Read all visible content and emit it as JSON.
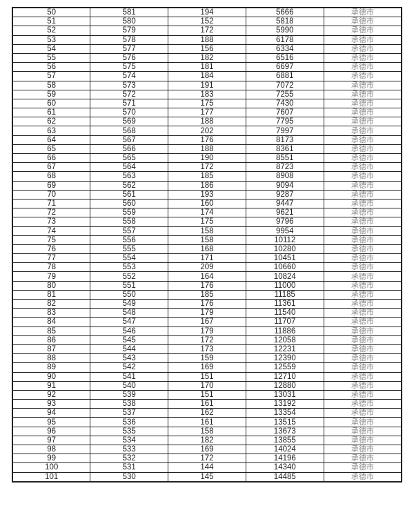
{
  "table": {
    "rows": [
      [
        "50",
        "581",
        "194",
        "5666",
        "承德市"
      ],
      [
        "51",
        "580",
        "152",
        "5818",
        "承德市"
      ],
      [
        "52",
        "579",
        "172",
        "5990",
        "承德市"
      ],
      [
        "53",
        "578",
        "188",
        "6178",
        "承德市"
      ],
      [
        "54",
        "577",
        "156",
        "6334",
        "承德市"
      ],
      [
        "55",
        "576",
        "182",
        "6516",
        "承德市"
      ],
      [
        "56",
        "575",
        "181",
        "6697",
        "承德市"
      ],
      [
        "57",
        "574",
        "184",
        "6881",
        "承德市"
      ],
      [
        "58",
        "573",
        "191",
        "7072",
        "承德市"
      ],
      [
        "59",
        "572",
        "183",
        "7255",
        "承德市"
      ],
      [
        "60",
        "571",
        "175",
        "7430",
        "承德市"
      ],
      [
        "61",
        "570",
        "177",
        "7607",
        "承德市"
      ],
      [
        "62",
        "569",
        "188",
        "7795",
        "承德市"
      ],
      [
        "63",
        "568",
        "202",
        "7997",
        "承德市"
      ],
      [
        "64",
        "567",
        "176",
        "8173",
        "承德市"
      ],
      [
        "65",
        "566",
        "188",
        "8361",
        "承德市"
      ],
      [
        "66",
        "565",
        "190",
        "8551",
        "承德市"
      ],
      [
        "67",
        "564",
        "172",
        "8723",
        "承德市"
      ],
      [
        "68",
        "563",
        "185",
        "8908",
        "承德市"
      ],
      [
        "69",
        "562",
        "186",
        "9094",
        "承德市"
      ],
      [
        "70",
        "561",
        "193",
        "9287",
        "承德市"
      ],
      [
        "71",
        "560",
        "160",
        "9447",
        "承德市"
      ],
      [
        "72",
        "559",
        "174",
        "9621",
        "承德市"
      ],
      [
        "73",
        "558",
        "175",
        "9796",
        "承德市"
      ],
      [
        "74",
        "557",
        "158",
        "9954",
        "承德市"
      ],
      [
        "75",
        "556",
        "158",
        "10112",
        "承德市"
      ],
      [
        "76",
        "555",
        "168",
        "10280",
        "承德市"
      ],
      [
        "77",
        "554",
        "171",
        "10451",
        "承德市"
      ],
      [
        "78",
        "553",
        "209",
        "10660",
        "承德市"
      ],
      [
        "79",
        "552",
        "164",
        "10824",
        "承德市"
      ],
      [
        "80",
        "551",
        "176",
        "11000",
        "承德市"
      ],
      [
        "81",
        "550",
        "185",
        "11185",
        "承德市"
      ],
      [
        "82",
        "549",
        "176",
        "11361",
        "承德市"
      ],
      [
        "83",
        "548",
        "179",
        "11540",
        "承德市"
      ],
      [
        "84",
        "547",
        "167",
        "11707",
        "承德市"
      ],
      [
        "85",
        "546",
        "179",
        "11886",
        "承德市"
      ],
      [
        "86",
        "545",
        "172",
        "12058",
        "承德市"
      ],
      [
        "87",
        "544",
        "173",
        "12231",
        "承德市"
      ],
      [
        "88",
        "543",
        "159",
        "12390",
        "承德市"
      ],
      [
        "89",
        "542",
        "169",
        "12559",
        "承德市"
      ],
      [
        "90",
        "541",
        "151",
        "12710",
        "承德市"
      ],
      [
        "91",
        "540",
        "170",
        "12880",
        "承德市"
      ],
      [
        "92",
        "539",
        "151",
        "13031",
        "承德市"
      ],
      [
        "93",
        "538",
        "161",
        "13192",
        "承德市"
      ],
      [
        "94",
        "537",
        "162",
        "13354",
        "承德市"
      ],
      [
        "95",
        "536",
        "161",
        "13515",
        "承德市"
      ],
      [
        "96",
        "535",
        "158",
        "13673",
        "承德市"
      ],
      [
        "97",
        "534",
        "182",
        "13855",
        "承德市"
      ],
      [
        "98",
        "533",
        "169",
        "14024",
        "承德市"
      ],
      [
        "99",
        "532",
        "172",
        "14196",
        "承德市"
      ],
      [
        "100",
        "531",
        "144",
        "14340",
        "承德市"
      ],
      [
        "101",
        "530",
        "145",
        "14485",
        "承德市"
      ]
    ]
  }
}
